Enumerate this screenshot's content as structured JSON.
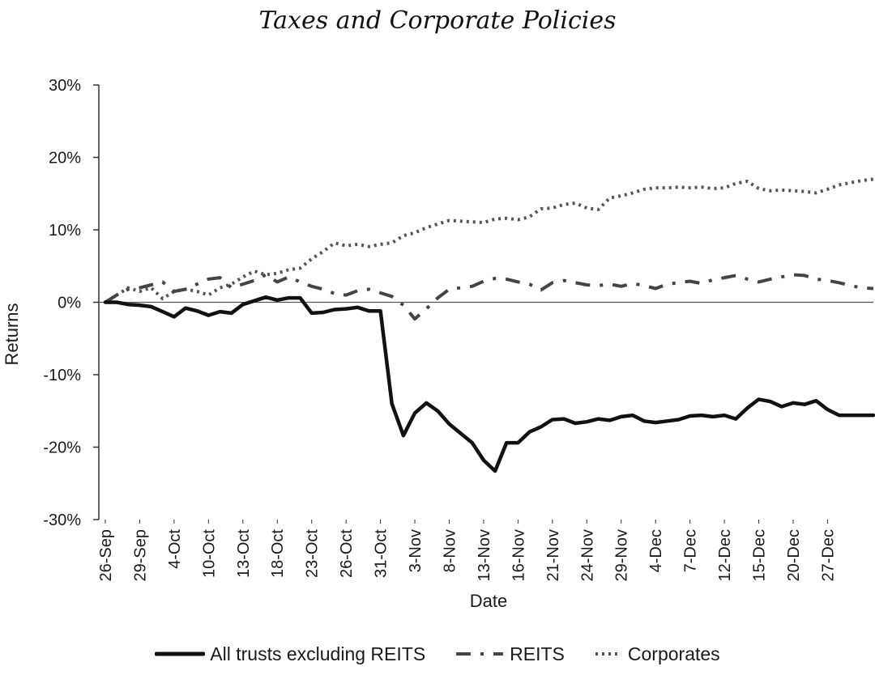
{
  "page": {
    "header": "Taxes and Corporate Policies"
  },
  "chart_data": {
    "type": "line",
    "title": "",
    "xlabel": "Date",
    "ylabel": "Returns",
    "ylim": [
      -30,
      30
    ],
    "yticks": [
      30,
      20,
      10,
      0,
      -10,
      -20,
      -30
    ],
    "ytick_labels": [
      "30%",
      "20%",
      "10%",
      "0%",
      "-10%",
      "-20%",
      "-30%"
    ],
    "x_labels": [
      "26-Sep",
      "29-Sep",
      "4-Oct",
      "10-Oct",
      "13-Oct",
      "18-Oct",
      "23-Oct",
      "26-Oct",
      "31-Oct",
      "3-Nov",
      "8-Nov",
      "13-Nov",
      "16-Nov",
      "21-Nov",
      "24-Nov",
      "29-Nov",
      "4-Dec",
      "7-Dec",
      "12-Dec",
      "15-Dec",
      "20-Dec",
      "27-Dec"
    ],
    "x_label_every": 3,
    "n_points": 68,
    "grid": false,
    "legend_position": "bottom",
    "series": [
      {
        "name": "All trusts excluding REITS",
        "style": "solid",
        "color": "#111111",
        "values": [
          0,
          0,
          -0.3,
          -0.4,
          -0.6,
          -1.3,
          -2.0,
          -0.8,
          -1.2,
          -1.8,
          -1.3,
          -1.5,
          -0.3,
          0.2,
          0.7,
          0.3,
          0.6,
          0.6,
          -1.5,
          -1.4,
          -1.0,
          -0.9,
          -0.7,
          -1.2,
          -1.2,
          -14.0,
          -18.4,
          -15.3,
          -13.9,
          -15.0,
          -16.8,
          -18.1,
          -19.4,
          -21.8,
          -23.3,
          -19.4,
          -19.4,
          -17.9,
          -17.2,
          -16.2,
          -16.1,
          -16.7,
          -16.5,
          -16.1,
          -16.3,
          -15.8,
          -15.6,
          -16.4,
          -16.6,
          -16.4,
          -16.2,
          -15.7,
          -15.6,
          -15.8,
          -15.6,
          -16.1,
          -14.6,
          -13.4,
          -13.7,
          -14.4,
          -13.9,
          -14.1,
          -13.6,
          -14.8,
          -15.6,
          -15.6,
          -15.6,
          -15.6
        ]
      },
      {
        "name": "REITS",
        "style": "dash-dot",
        "color": "#444444",
        "values": [
          0,
          1.0,
          1.8,
          2.0,
          2.4,
          2.8,
          1.5,
          1.8,
          2.5,
          3.2,
          3.4,
          2.0,
          2.5,
          3.0,
          3.8,
          2.8,
          3.5,
          2.8,
          2.2,
          1.8,
          1.2,
          1.0,
          1.6,
          1.8,
          1.3,
          0.8,
          -0.4,
          -2.3,
          -0.9,
          0.6,
          1.8,
          2.0,
          2.2,
          2.9,
          3.3,
          3.2,
          2.8,
          2.5,
          1.7,
          2.7,
          3.0,
          2.7,
          2.4,
          2.3,
          2.5,
          2.2,
          2.6,
          2.3,
          1.9,
          2.5,
          2.7,
          2.9,
          2.6,
          3.1,
          3.4,
          3.7,
          3.2,
          2.8,
          3.2,
          3.5,
          3.8,
          3.7,
          3.2,
          3.0,
          2.7,
          2.3,
          2.0,
          1.9
        ]
      },
      {
        "name": "Corporates",
        "style": "dotted",
        "color": "#555555",
        "values": [
          0,
          1.0,
          2.0,
          1.5,
          2.0,
          0.5,
          1.5,
          1.8,
          1.5,
          1.0,
          2.0,
          2.5,
          3.5,
          4.3,
          3.8,
          4.0,
          4.5,
          4.7,
          6.0,
          7.0,
          8.2,
          7.8,
          8.0,
          7.7,
          8.0,
          8.2,
          9.2,
          9.6,
          10.3,
          10.8,
          11.3,
          11.2,
          11.1,
          11.0,
          11.5,
          11.6,
          11.4,
          11.8,
          12.9,
          13.0,
          13.5,
          13.7,
          13.0,
          12.8,
          14.4,
          14.7,
          15.1,
          15.6,
          15.8,
          15.8,
          15.9,
          15.8,
          15.9,
          15.7,
          15.8,
          16.4,
          16.7,
          15.7,
          15.4,
          15.5,
          15.4,
          15.3,
          15.1,
          15.6,
          16.2,
          16.5,
          16.8,
          17.0
        ]
      }
    ]
  }
}
